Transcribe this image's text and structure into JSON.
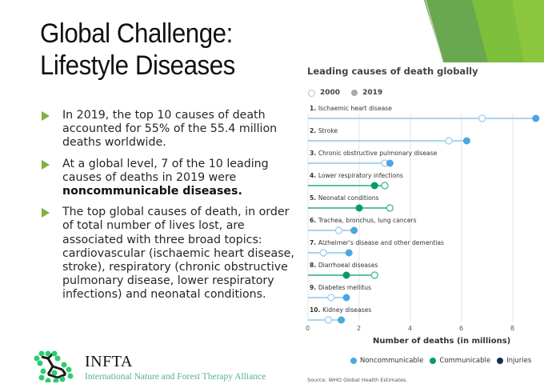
{
  "slide": {
    "title_line1": "Global Challenge:",
    "title_line2": "Lifestyle Diseases",
    "bullets": [
      {
        "text": "In 2019, the top 10 causes of death accounted for 55% of the 55.4 million deaths worldwide."
      },
      {
        "text_pre": "At a global level, 7 of the 10 leading causes of deaths in 2019 were ",
        "text_bold": "noncommunicable diseases."
      },
      {
        "text": "The top global causes of death, in order of total number of lives lost, are associated with three broad topics: cardiovascular (ischaemic heart disease, stroke), respiratory (chronic obstructive pulmonary disease, lower respiratory infections) and neonatal conditions."
      }
    ],
    "branding": {
      "name": "INFTA",
      "full_name": "International Nature and Forest Therapy Alliance"
    },
    "accent_color": "#7cb342"
  },
  "chart_data": {
    "type": "dot-plot",
    "title": "Leading causes of death globally",
    "xlabel": "Number of deaths (in millions)",
    "ylabel": "",
    "xlim": [
      0,
      9
    ],
    "xticks": [
      "0",
      "2",
      "4",
      "6",
      "8"
    ],
    "grid": true,
    "year_legend": [
      {
        "label": "2000",
        "style": "open"
      },
      {
        "label": "2019",
        "style": "filled"
      }
    ],
    "category_legend": [
      {
        "label": "Noncommunicable",
        "color": "#4da6e0"
      },
      {
        "label": "Communicable",
        "color": "#0a9a6a"
      },
      {
        "label": "Injuries",
        "color": "#1a2a55"
      }
    ],
    "categories": [
      {
        "rank": "1.",
        "name": "Ischaemic heart disease",
        "group": "Noncommunicable",
        "y2000": 6.8,
        "y2019": 8.9
      },
      {
        "rank": "2.",
        "name": "Stroke",
        "group": "Noncommunicable",
        "y2000": 5.5,
        "y2019": 6.2
      },
      {
        "rank": "3.",
        "name": "Chronic obstructive pulmonary disease",
        "group": "Noncommunicable",
        "y2000": 3.0,
        "y2019": 3.2
      },
      {
        "rank": "4.",
        "name": "Lower respiratory infections",
        "group": "Communicable",
        "y2000": 3.0,
        "y2019": 2.6
      },
      {
        "rank": "5.",
        "name": "Neonatal conditions",
        "group": "Communicable",
        "y2000": 3.2,
        "y2019": 2.0
      },
      {
        "rank": "6.",
        "name": "Trachea, bronchus, lung cancers",
        "group": "Noncommunicable",
        "y2000": 1.2,
        "y2019": 1.8
      },
      {
        "rank": "7.",
        "name": "Alzheimer's disease and other dementias",
        "group": "Noncommunicable",
        "y2000": 0.6,
        "y2019": 1.6
      },
      {
        "rank": "8.",
        "name": "Diarrhoeal diseases",
        "group": "Communicable",
        "y2000": 2.6,
        "y2019": 1.5
      },
      {
        "rank": "9.",
        "name": "Diabetes mellitus",
        "group": "Noncommunicable",
        "y2000": 0.9,
        "y2019": 1.5
      },
      {
        "rank": "10.",
        "name": "Kidney diseases",
        "group": "Noncommunicable",
        "y2000": 0.8,
        "y2019": 1.3
      }
    ],
    "source": "Source: WHO Global Health Estimates."
  }
}
